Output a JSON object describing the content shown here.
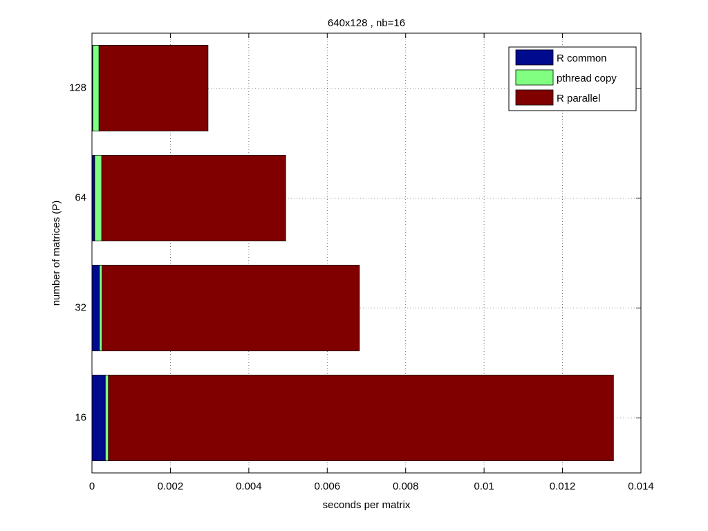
{
  "chart_data": {
    "type": "stacked-barh",
    "title": "640x128 , nb=16",
    "xlabel": "seconds per matrix",
    "ylabel": "number of matrices (P)",
    "categories": [
      "16",
      "32",
      "64",
      "128"
    ],
    "series": [
      {
        "name": "R common",
        "color": "#000a8c",
        "values": [
          0.00034,
          0.00019,
          7e-05,
          2e-05
        ]
      },
      {
        "name": "pthread copy",
        "color": "#80ff80",
        "values": [
          8e-05,
          7e-05,
          0.00018,
          0.00016
        ]
      },
      {
        "name": "R parallel",
        "color": "#800000",
        "values": [
          0.01288,
          0.00656,
          0.00469,
          0.00278
        ]
      }
    ],
    "xlim": [
      0,
      0.014
    ],
    "xticks": [
      0,
      0.002,
      0.004,
      0.006,
      0.008,
      0.01,
      0.012,
      0.014
    ],
    "grid": true,
    "legend": "northeast"
  }
}
